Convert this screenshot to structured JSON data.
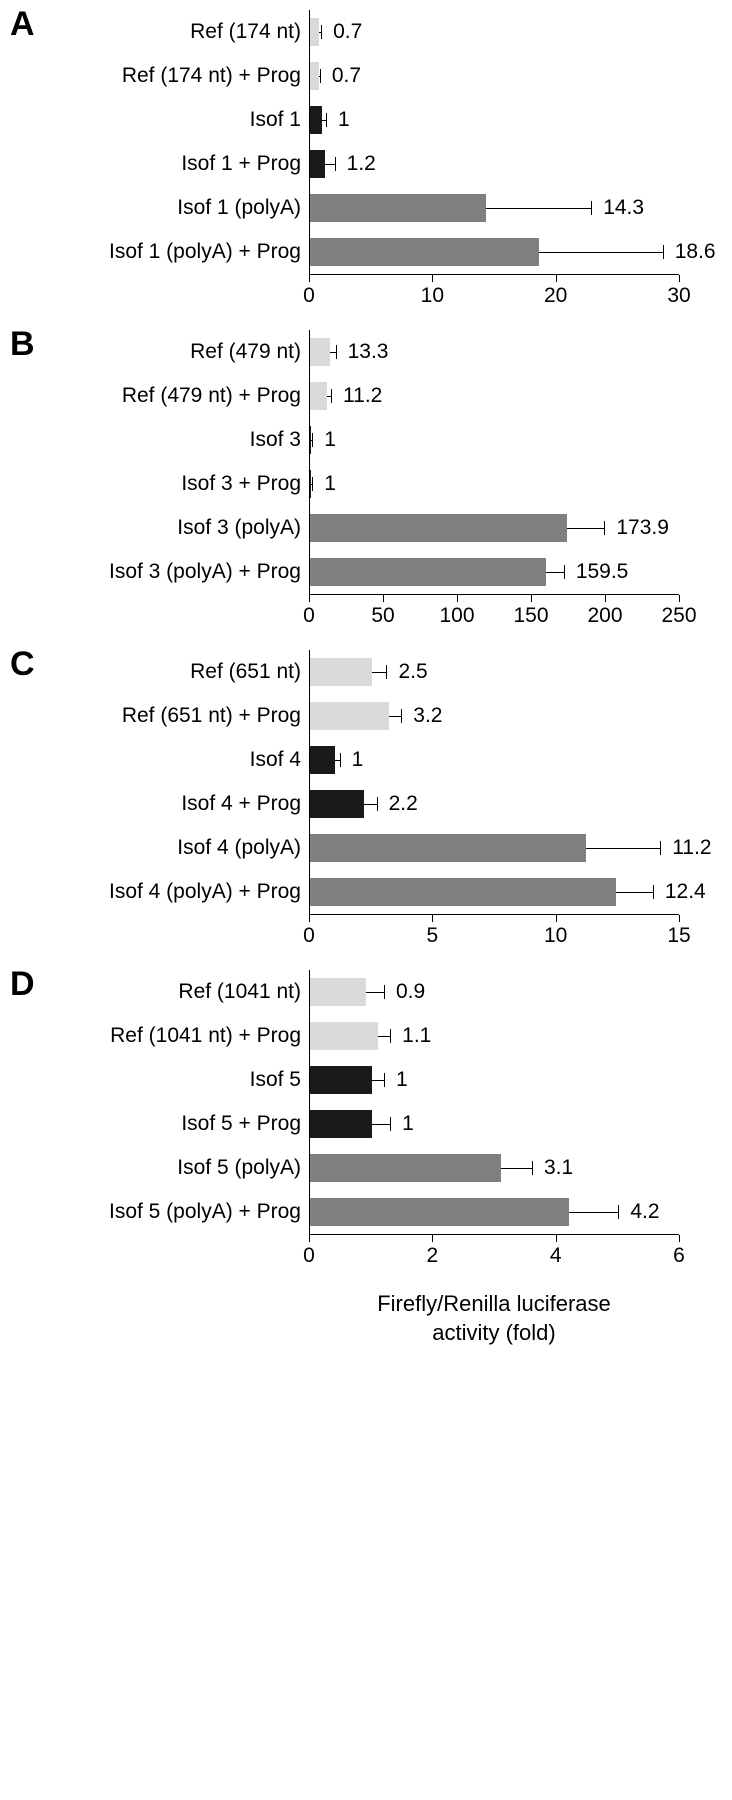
{
  "xlabel_line1": "Firefly/Renilla luciferase",
  "xlabel_line2": "activity (fold)",
  "colors": {
    "ref": "#d9d9d9",
    "isof": "#1a1a1a",
    "polya": "#808080",
    "err": "#000000"
  },
  "panels": [
    {
      "letter": "A",
      "xmax": 30,
      "ticks": [
        0,
        10,
        20,
        30
      ],
      "bars": [
        {
          "label": "Ref (174 nt)",
          "value": 0.7,
          "err": 0.2,
          "color": "ref"
        },
        {
          "label": "Ref (174 nt) + Prog",
          "value": 0.7,
          "err": 0.1,
          "color": "ref"
        },
        {
          "label": "Isof 1",
          "value": 1.0,
          "err": 0.3,
          "color": "isof"
        },
        {
          "label": "Isof 1 + Prog",
          "value": 1.2,
          "err": 0.8,
          "color": "isof"
        },
        {
          "label": "Isof 1 (polyA)",
          "value": 14.3,
          "err": 8.5,
          "color": "polya"
        },
        {
          "label": "Isof 1 (polyA) + Prog",
          "value": 18.6,
          "err": 10.0,
          "color": "polya"
        }
      ]
    },
    {
      "letter": "B",
      "xmax": 250,
      "ticks": [
        0,
        50,
        100,
        150,
        200,
        250
      ],
      "bars": [
        {
          "label": "Ref (479 nt)",
          "value": 13.3,
          "err": 4.0,
          "color": "ref"
        },
        {
          "label": "Ref (479 nt) + Prog",
          "value": 11.2,
          "err": 3.0,
          "color": "ref"
        },
        {
          "label": "Isof 3",
          "value": 1.0,
          "err": 0.5,
          "color": "isof"
        },
        {
          "label": "Isof 3 + Prog",
          "value": 1.0,
          "err": 0.5,
          "color": "isof"
        },
        {
          "label": "Isof 3 (polyA)",
          "value": 173.9,
          "err": 25.0,
          "color": "polya"
        },
        {
          "label": "Isof 3 (polyA) + Prog",
          "value": 159.5,
          "err": 12.0,
          "color": "polya"
        }
      ]
    },
    {
      "letter": "C",
      "xmax": 15,
      "ticks": [
        0,
        5,
        10,
        15
      ],
      "bars": [
        {
          "label": "Ref (651 nt)",
          "value": 2.5,
          "err": 0.6,
          "color": "ref"
        },
        {
          "label": "Ref (651 nt) + Prog",
          "value": 3.2,
          "err": 0.5,
          "color": "ref"
        },
        {
          "label": "Isof 4",
          "value": 1.0,
          "err": 0.2,
          "color": "isof"
        },
        {
          "label": "Isof 4 + Prog",
          "value": 2.2,
          "err": 0.5,
          "color": "isof"
        },
        {
          "label": "Isof 4 (polyA)",
          "value": 11.2,
          "err": 3.0,
          "color": "polya"
        },
        {
          "label": "Isof 4 (polyA) + Prog",
          "value": 12.4,
          "err": 1.5,
          "color": "polya"
        }
      ]
    },
    {
      "letter": "D",
      "xmax": 6,
      "ticks": [
        0,
        2,
        4,
        6
      ],
      "bars": [
        {
          "label": "Ref (1041 nt)",
          "value": 0.9,
          "err": 0.3,
          "color": "ref"
        },
        {
          "label": "Ref (1041 nt) + Prog",
          "value": 1.1,
          "err": 0.2,
          "color": "ref"
        },
        {
          "label": "Isof 5",
          "value": 1.0,
          "err": 0.2,
          "color": "isof"
        },
        {
          "label": "Isof 5 + Prog",
          "value": 1.0,
          "err": 0.3,
          "color": "isof"
        },
        {
          "label": "Isof 5 (polyA)",
          "value": 3.1,
          "err": 0.5,
          "color": "polya"
        },
        {
          "label": "Isof 5 (polyA) + Prog",
          "value": 4.2,
          "err": 0.8,
          "color": "polya"
        }
      ]
    }
  ]
}
